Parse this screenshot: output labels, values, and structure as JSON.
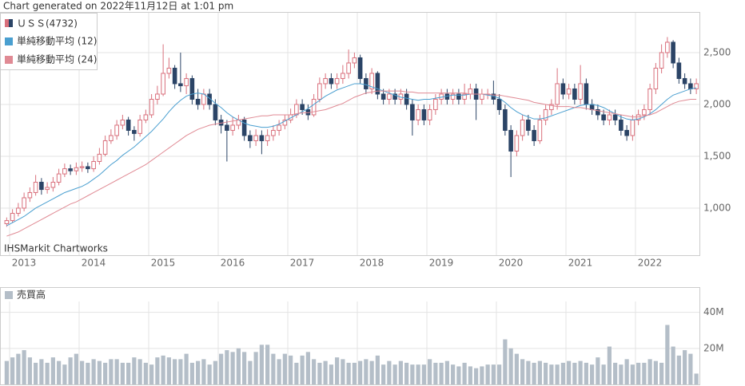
{
  "caption": "Chart generated on 2022年11月12日 at 1:01 pm",
  "chart_data": [
    {
      "type": "candlestick",
      "name": "ＵＳＳ(4732)",
      "watermark": "IHSMarkit Chartworks",
      "up_color": "#d9707c",
      "down_color": "#2b4466",
      "categories": [
        null,
        "2013",
        null,
        null,
        null,
        null,
        null,
        null,
        null,
        null,
        null,
        null,
        null,
        "2014",
        null,
        null,
        null,
        null,
        null,
        null,
        null,
        null,
        null,
        null,
        null,
        "2015",
        null,
        null,
        null,
        null,
        null,
        null,
        null,
        null,
        null,
        null,
        null,
        "2016",
        null,
        null,
        null,
        null,
        null,
        null,
        null,
        null,
        null,
        null,
        null,
        "2017",
        null,
        null,
        null,
        null,
        null,
        null,
        null,
        null,
        null,
        null,
        null,
        "2018",
        null,
        null,
        null,
        null,
        null,
        null,
        null,
        null,
        null,
        null,
        null,
        "2019",
        null,
        null,
        null,
        null,
        null,
        null,
        null,
        null,
        null,
        null,
        null,
        "2020",
        null,
        null,
        null,
        null,
        null,
        null,
        null,
        null,
        null,
        null,
        null,
        "2021",
        null,
        null,
        null,
        null,
        null,
        null,
        null,
        null,
        null,
        null,
        null,
        "2022",
        null,
        null,
        null,
        null,
        null,
        null,
        null,
        null,
        null,
        null
      ],
      "open": [
        850,
        880,
        950,
        1000,
        1100,
        1150,
        1250,
        1180,
        1200,
        1250,
        1330,
        1380,
        1360,
        1390,
        1400,
        1380,
        1450,
        1520,
        1650,
        1700,
        1800,
        1850,
        1750,
        1720,
        1850,
        1900,
        2050,
        2100,
        2300,
        2350,
        2200,
        2180,
        2250,
        2050,
        2000,
        2100,
        2000,
        1850,
        1800,
        1750,
        1800,
        1850,
        1700,
        1650,
        1700,
        1650,
        1700,
        1750,
        1800,
        1850,
        1900,
        2000,
        1950,
        1900,
        2050,
        2200,
        2250,
        2200,
        2250,
        2300,
        2400,
        2450,
        2250,
        2150,
        2300,
        2100,
        2050,
        2100,
        2050,
        2100,
        2000,
        1850,
        1950,
        1850,
        1950,
        2050,
        2100,
        2050,
        2100,
        2050,
        2100,
        2150,
        2050,
        2100,
        2100,
        2050,
        1950,
        1750,
        1550,
        1700,
        1850,
        1750,
        1650,
        1850,
        1950,
        2000,
        2200,
        2100,
        2150,
        2050,
        2200,
        2000,
        1950,
        1900,
        1850,
        1900,
        1850,
        1750,
        1700,
        1850,
        1900,
        1950,
        2150,
        2350,
        2500,
        2600,
        2400,
        2250,
        2200,
        2150
      ],
      "high": [
        910,
        990,
        1050,
        1150,
        1200,
        1320,
        1290,
        1250,
        1300,
        1380,
        1430,
        1420,
        1440,
        1450,
        1440,
        1500,
        1580,
        1700,
        1760,
        1850,
        1900,
        1880,
        1790,
        1900,
        1950,
        2100,
        2180,
        2580,
        2450,
        2380,
        2500,
        2300,
        2280,
        2150,
        2150,
        2150,
        2050,
        1900,
        1850,
        1880,
        1900,
        1880,
        1750,
        1760,
        1750,
        1760,
        1800,
        1850,
        1900,
        1960,
        2050,
        2050,
        2000,
        2100,
        2260,
        2300,
        2300,
        2300,
        2380,
        2530,
        2500,
        2480,
        2300,
        2350,
        2320,
        2150,
        2150,
        2150,
        2150,
        2150,
        2050,
        2000,
        2000,
        2000,
        2100,
        2150,
        2150,
        2150,
        2150,
        2200,
        2200,
        2200,
        2150,
        2150,
        2230,
        2100,
        2000,
        1800,
        1750,
        1900,
        1900,
        1800,
        1900,
        2000,
        2050,
        2350,
        2250,
        2200,
        2200,
        2380,
        2250,
        2050,
        2000,
        1950,
        1950,
        1950,
        1900,
        1800,
        1900,
        1950,
        2000,
        2200,
        2400,
        2580,
        2650,
        2620,
        2450,
        2300,
        2250,
        2250
      ],
      "low": [
        820,
        860,
        920,
        970,
        1060,
        1120,
        1130,
        1140,
        1160,
        1220,
        1300,
        1320,
        1320,
        1350,
        1340,
        1350,
        1420,
        1500,
        1620,
        1660,
        1760,
        1700,
        1650,
        1690,
        1820,
        1870,
        2000,
        2080,
        2250,
        2150,
        2120,
        2100,
        2000,
        1950,
        1950,
        1950,
        1800,
        1720,
        1450,
        1700,
        1760,
        1650,
        1580,
        1600,
        1520,
        1600,
        1650,
        1700,
        1760,
        1820,
        1870,
        1900,
        1850,
        1880,
        2020,
        2150,
        2150,
        2150,
        2200,
        2250,
        2350,
        2200,
        2100,
        2100,
        2050,
        2000,
        2000,
        2000,
        2000,
        1950,
        1700,
        1800,
        1800,
        1800,
        1900,
        2000,
        2000,
        2000,
        2000,
        2000,
        2050,
        1850,
        2000,
        2050,
        2000,
        1900,
        1700,
        1300,
        1500,
        1650,
        1700,
        1600,
        1620,
        1800,
        1900,
        1950,
        2050,
        2050,
        2000,
        2000,
        1950,
        1900,
        1850,
        1800,
        1800,
        1800,
        1700,
        1650,
        1650,
        1800,
        1850,
        1900,
        2100,
        2300,
        2450,
        2350,
        2200,
        2150,
        2100,
        2100
      ],
      "close": [
        880,
        950,
        1000,
        1100,
        1150,
        1250,
        1180,
        1200,
        1250,
        1330,
        1380,
        1360,
        1390,
        1400,
        1380,
        1450,
        1520,
        1650,
        1700,
        1800,
        1850,
        1750,
        1720,
        1850,
        1900,
        2050,
        2100,
        2300,
        2350,
        2200,
        2180,
        2250,
        2050,
        2000,
        2100,
        2000,
        1850,
        1800,
        1750,
        1800,
        1850,
        1700,
        1650,
        1700,
        1650,
        1700,
        1750,
        1800,
        1850,
        1900,
        2000,
        1950,
        1900,
        2050,
        2200,
        2250,
        2200,
        2250,
        2300,
        2400,
        2450,
        2250,
        2150,
        2300,
        2100,
        2050,
        2100,
        2050,
        2100,
        2000,
        1850,
        1950,
        1850,
        1950,
        2050,
        2100,
        2050,
        2100,
        2050,
        2100,
        2150,
        2050,
        2100,
        2100,
        2050,
        1950,
        1750,
        1550,
        1700,
        1850,
        1750,
        1650,
        1850,
        1950,
        2000,
        2200,
        2100,
        2150,
        2050,
        2200,
        2000,
        1950,
        1900,
        1850,
        1900,
        1850,
        1750,
        1700,
        1850,
        1900,
        1950,
        2150,
        2350,
        2500,
        2600,
        2400,
        2250,
        2200,
        2150,
        2200
      ],
      "series": [
        {
          "name": "単純移動平均 (12)",
          "color": "#4a9fd0",
          "values": [
            830,
            860,
            890,
            920,
            960,
            1000,
            1030,
            1060,
            1090,
            1120,
            1150,
            1170,
            1190,
            1210,
            1240,
            1280,
            1320,
            1370,
            1420,
            1460,
            1510,
            1550,
            1590,
            1640,
            1690,
            1740,
            1800,
            1860,
            1930,
            1990,
            2040,
            2080,
            2100,
            2110,
            2100,
            2060,
            2010,
            1970,
            1920,
            1880,
            1850,
            1820,
            1800,
            1790,
            1780,
            1780,
            1790,
            1810,
            1840,
            1870,
            1900,
            1930,
            1960,
            2000,
            2040,
            2080,
            2110,
            2140,
            2160,
            2180,
            2200,
            2200,
            2190,
            2170,
            2150,
            2130,
            2110,
            2090,
            2070,
            2060,
            2050,
            2040,
            2050,
            2050,
            2060,
            2070,
            2080,
            2090,
            2090,
            2090,
            2100,
            2100,
            2100,
            2090,
            2080,
            2060,
            2020,
            1970,
            1930,
            1900,
            1880,
            1860,
            1860,
            1870,
            1890,
            1910,
            1930,
            1950,
            1970,
            1990,
            2000,
            2000,
            1990,
            1970,
            1940,
            1910,
            1880,
            1860,
            1850,
            1860,
            1880,
            1910,
            1950,
            2000,
            2050,
            2090,
            2110,
            2130,
            2150,
            2160
          ]
        },
        {
          "name": "単純移動平均 (24)",
          "color": "#e08a94",
          "values": [
            730,
            750,
            770,
            800,
            830,
            860,
            890,
            920,
            950,
            980,
            1010,
            1040,
            1060,
            1090,
            1120,
            1150,
            1180,
            1210,
            1240,
            1270,
            1300,
            1330,
            1360,
            1390,
            1420,
            1460,
            1500,
            1540,
            1580,
            1620,
            1660,
            1700,
            1730,
            1760,
            1780,
            1800,
            1810,
            1820,
            1830,
            1840,
            1850,
            1860,
            1870,
            1880,
            1890,
            1890,
            1900,
            1900,
            1900,
            1900,
            1910,
            1920,
            1920,
            1930,
            1940,
            1950,
            1970,
            1990,
            2010,
            2040,
            2070,
            2090,
            2110,
            2120,
            2130,
            2130,
            2130,
            2130,
            2130,
            2120,
            2120,
            2110,
            2110,
            2110,
            2110,
            2110,
            2110,
            2110,
            2110,
            2110,
            2100,
            2100,
            2100,
            2100,
            2090,
            2090,
            2080,
            2070,
            2060,
            2050,
            2040,
            2020,
            2010,
            2000,
            1990,
            1980,
            1980,
            1980,
            1970,
            1970,
            1960,
            1950,
            1940,
            1930,
            1920,
            1910,
            1900,
            1890,
            1880,
            1880,
            1890,
            1900,
            1920,
            1950,
            1980,
            2010,
            2030,
            2040,
            2050,
            2050
          ]
        }
      ],
      "ylim": [
        546,
        2892
      ],
      "yticks": [
        {
          "value": 1000,
          "label": "1,000"
        },
        {
          "value": 1500,
          "label": "1,500"
        },
        {
          "value": 2000,
          "label": "2,000"
        },
        {
          "value": 2500,
          "label": "2,500"
        }
      ],
      "grid": true
    },
    {
      "type": "bar",
      "name": "売買高",
      "color": "#b4bec8",
      "values": [
        13,
        15,
        17,
        19,
        15,
        12,
        14,
        12,
        15,
        13,
        11,
        15,
        17,
        13,
        12,
        14,
        13,
        12,
        14,
        14,
        12,
        12,
        15,
        14,
        12,
        11,
        15,
        16,
        15,
        14,
        14,
        17,
        12,
        13,
        14,
        11,
        13,
        17,
        19,
        18,
        20,
        18,
        13,
        18,
        22,
        22,
        17,
        14,
        17,
        16,
        12,
        16,
        18,
        14,
        12,
        13,
        11,
        15,
        14,
        12,
        12,
        13,
        14,
        13,
        16,
        11,
        13,
        11,
        13,
        12,
        11,
        11,
        11,
        14,
        12,
        12,
        13,
        11,
        10,
        12,
        10,
        9,
        10,
        11,
        11,
        11,
        25,
        20,
        17,
        14,
        13,
        12,
        13,
        12,
        11,
        11,
        12,
        13,
        12,
        13,
        12,
        11,
        15,
        11,
        21,
        12,
        11,
        14,
        11,
        12,
        12,
        14,
        13,
        12,
        33,
        21,
        16,
        19,
        17,
        6
      ],
      "ylim": [
        0,
        54
      ],
      "yticks": [
        {
          "value": 20,
          "label": "20M"
        },
        {
          "value": 40,
          "label": "40M"
        }
      ],
      "grid": true
    }
  ]
}
